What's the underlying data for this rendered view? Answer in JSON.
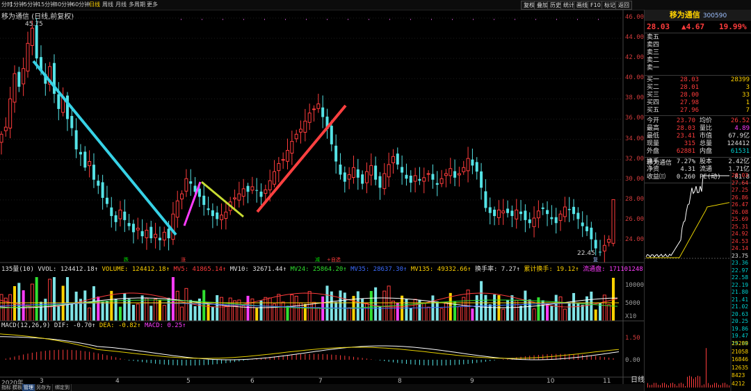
{
  "toolbar": {
    "periods": [
      "分时",
      "1分钟",
      "5分钟",
      "15分钟",
      "30分钟",
      "60分钟",
      "日线",
      "周线",
      "月线",
      "多周期",
      "更多"
    ],
    "active_period": "日线",
    "buttons": [
      "复权",
      "叠加",
      "历史",
      "统计",
      "画线",
      "F10",
      "标记",
      "返回"
    ]
  },
  "title": {
    "stock_name": "移为通信",
    "chart_desc": "(日线,前复权)"
  },
  "price_axis": [
    "46.00",
    "44.00",
    "42.00",
    "40.00",
    "38.00",
    "36.00",
    "34.00",
    "32.00",
    "30.00",
    "28.00",
    "26.00",
    "24.00"
  ],
  "chart_marks": {
    "high_label": "45.75",
    "low_label": "22.45",
    "signal_labels": [
      "跌",
      "涨",
      "减",
      "+自选",
      "复"
    ]
  },
  "volume_indicator": {
    "prefix": "135量(10)",
    "vvol": "VVOL: 124412.18↑",
    "volume": "VOLUME: 124412.18↑",
    "mv5": "MV5: 41865.14↑",
    "mv10": "MV10: 32671.44↑",
    "mv24": "MV24: 25864.20↑",
    "mv35": "MV35: 28637.30↑",
    "mv135": "MV135: 49332.66↑",
    "turnover": "换手率: 7.27↑",
    "cum_turnover": "累计换手: 19.12↑",
    "float": "流通盘: 171101248",
    "axis": [
      "10000",
      "5000",
      "X10"
    ]
  },
  "macd_indicator": {
    "prefix": "MACD(12,26,9)",
    "dif": "DIF: -0.70↑",
    "dea": "DEA: -0.82↑",
    "macd": "MACD: 0.25↑",
    "axis": [
      "1.50",
      "0.00"
    ]
  },
  "x_axis": [
    "2020年",
    "3",
    "4",
    "5",
    "6",
    "7",
    "8",
    "9",
    "10",
    "11"
  ],
  "bottom_tabs": [
    "指标",
    "模板",
    "管理",
    "另存为",
    "绑定到"
  ],
  "chart_data": {
    "type": "candlestick",
    "title": "",
    "ylim": [
      22,
      47
    ],
    "price_ticks": [
      24,
      26,
      28,
      30,
      32,
      34,
      36,
      38,
      40,
      42,
      44,
      46
    ],
    "high": 45.75,
    "low": 22.45,
    "close_series": [
      34.5,
      35.2,
      38.0,
      40.5,
      39.2,
      41.0,
      43.5,
      45.0,
      42.0,
      40.8,
      39.5,
      41.2,
      38.5,
      37.0,
      38.2,
      36.0,
      35.1,
      33.0,
      32.5,
      31.2,
      31.8,
      30.0,
      29.4,
      28.2,
      27.6,
      26.4,
      25.8,
      27.0,
      26.0,
      25.4,
      24.8,
      25.2,
      24.4,
      25.0,
      24.2,
      24.6,
      24.0,
      24.8,
      24.2,
      26.6,
      27.9,
      28.6,
      30.1,
      29.6,
      28.8,
      28.3,
      27.5,
      27.0,
      26.4,
      26.1,
      26.5,
      26.8,
      27.8,
      28.2,
      28.6,
      29.1,
      28.8,
      29.3,
      28.9,
      28.3,
      29.0,
      29.9,
      30.8,
      31.6,
      32.0,
      32.9,
      33.8,
      34.5,
      35.0,
      35.8,
      36.6,
      37.0,
      37.5,
      36.2,
      35.0,
      33.5,
      31.8,
      30.5,
      29.8,
      30.5,
      31.2,
      30.2,
      29.6,
      30.8,
      31.4,
      30.0,
      29.2,
      30.6,
      31.5,
      32.3,
      31.5,
      30.7,
      30.1,
      29.7,
      30.4,
      29.9,
      30.2,
      30.6,
      30.0,
      29.5,
      30.1,
      30.6,
      31.1,
      30.2,
      30.6,
      31.2,
      32.1,
      31.4,
      30.8,
      29.2,
      27.2,
      26.7,
      26.4,
      27.0,
      26.9,
      26.7,
      26.4,
      27.0,
      26.6,
      26.0,
      25.7,
      26.2,
      26.9,
      27.1,
      26.6,
      26.1,
      25.7,
      26.6,
      27.3,
      27.0,
      26.6,
      26.1,
      25.4,
      24.9,
      24.1,
      23.2,
      22.8,
      23.5,
      24.1,
      28.03
    ],
    "volume_axis": [
      5000,
      10000
    ],
    "macd_axis": [
      0.0,
      1.5
    ]
  },
  "quote_panel": {
    "name": "移为通信",
    "code": "300590",
    "price": "28.03",
    "change": "▲4.67",
    "change_pct": "19.99%",
    "sell_levels": [
      {
        "label": "卖五",
        "price": "",
        "vol": ""
      },
      {
        "label": "卖四",
        "price": "",
        "vol": ""
      },
      {
        "label": "卖三",
        "price": "",
        "vol": ""
      },
      {
        "label": "卖二",
        "price": "",
        "vol": ""
      },
      {
        "label": "卖一",
        "price": "",
        "vol": ""
      }
    ],
    "buy_levels": [
      {
        "label": "买一",
        "price": "28.03",
        "vol": "28399"
      },
      {
        "label": "买二",
        "price": "28.01",
        "vol": "3"
      },
      {
        "label": "买三",
        "price": "28.00",
        "vol": "33"
      },
      {
        "label": "买四",
        "price": "27.98",
        "vol": "1"
      },
      {
        "label": "买五",
        "price": "27.96",
        "vol": "7"
      }
    ],
    "stats": [
      {
        "l1": "今开",
        "v1": "23.70",
        "l2": "均价",
        "v2": "26.52"
      },
      {
        "l1": "最高",
        "v1": "28.03",
        "l2": "量比",
        "v2": "4.89"
      },
      {
        "l1": "最低",
        "v1": "23.41",
        "l2": "市值",
        "v2": "67.9亿"
      },
      {
        "l1": "现量",
        "v1": "315",
        "l2": "总量",
        "v2": "124412"
      },
      {
        "l1": "外盘",
        "v1": "62881",
        "l2": "内盘",
        "v2": "61531"
      }
    ],
    "stats2": [
      {
        "l1": "换手",
        "v1": "7.27%",
        "l2": "股本",
        "v2": "2.42亿"
      },
      {
        "l1": "净资",
        "v1": "4.31",
        "l2": "流通",
        "v2": "1.71亿"
      },
      {
        "l1": "收益㈢",
        "v1": "0.260",
        "l2": "PE(动)",
        "v2": "81.8"
      }
    ],
    "mini_title": "移为通信",
    "mini_axis": [
      "28.03",
      "27.64",
      "27.25",
      "26.86",
      "26.47",
      "26.08",
      "25.69",
      "25.31",
      "24.92",
      "24.53",
      "24.14",
      "23.75",
      "23.36",
      "22.97",
      "22.58",
      "22.19",
      "21.80",
      "21.41",
      "21.02",
      "20.63",
      "20.25",
      "19.86",
      "19.47",
      "19.08"
    ],
    "mini_vol_axis": [
      "25289",
      "21058",
      "16846",
      "12635",
      "8423",
      "4212"
    ],
    "mini_tab": "日线"
  }
}
